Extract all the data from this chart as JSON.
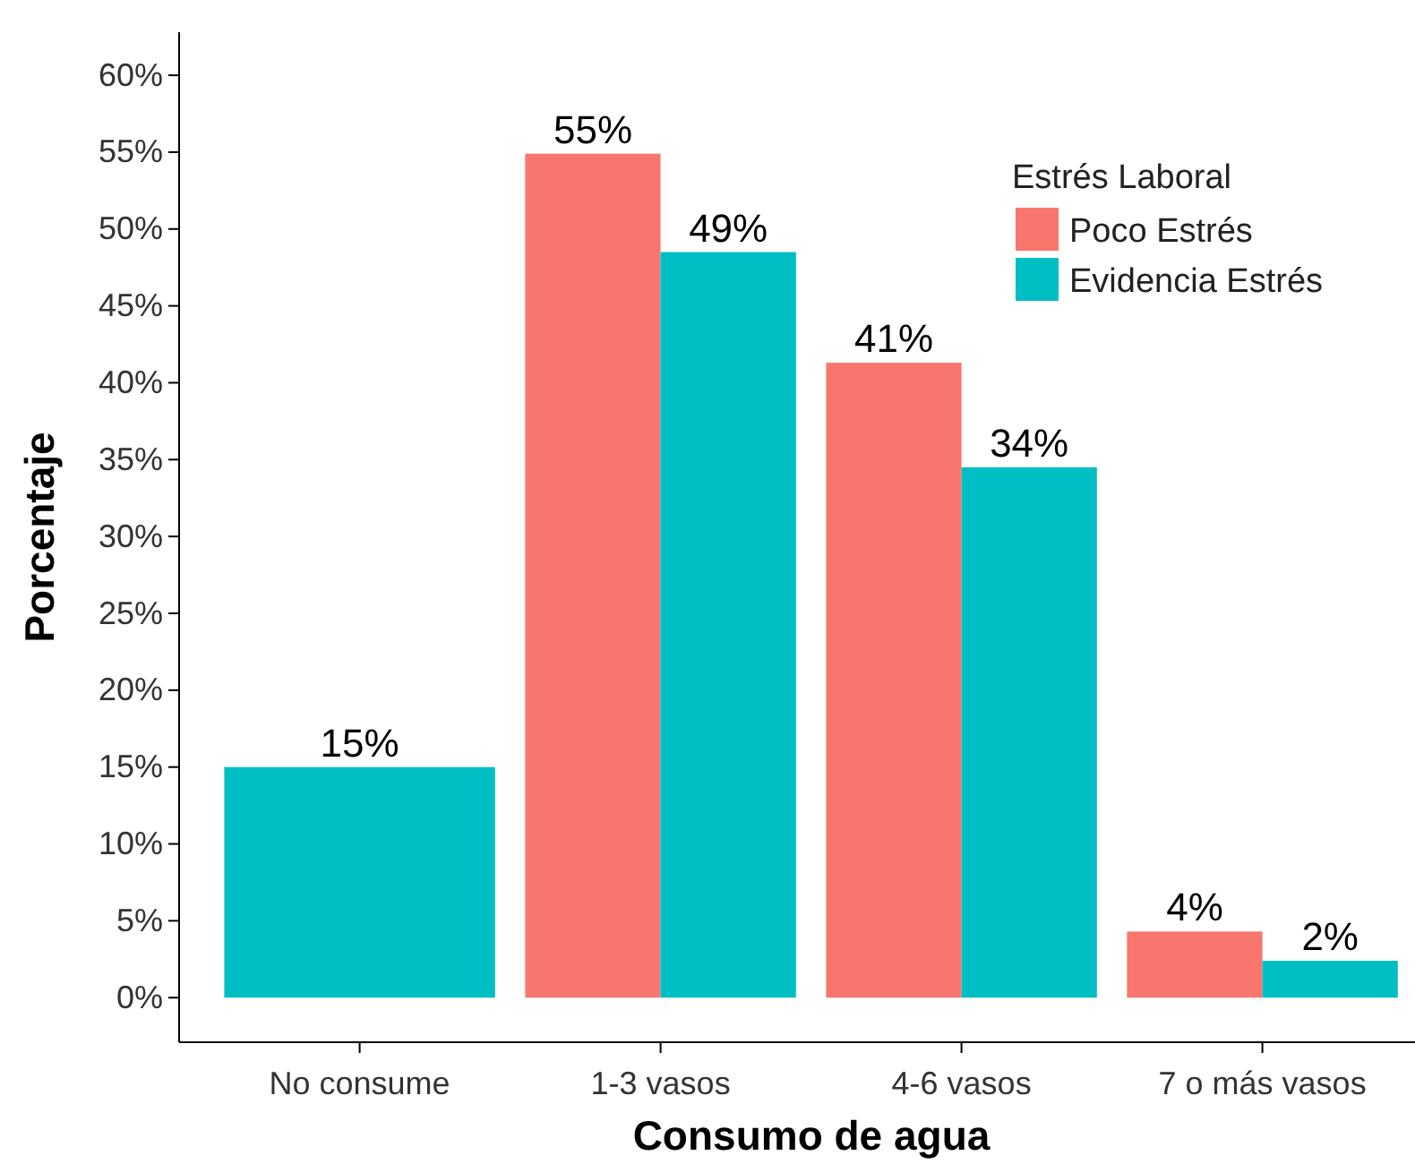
{
  "chart_data": {
    "type": "bar",
    "xlabel": "Consumo de agua",
    "ylabel": "Porcentaje",
    "legend_title": "Estrés Laboral",
    "legend": "top right",
    "grid": false,
    "categories": [
      "No consume",
      "1-3 vasos",
      "4-6 vasos",
      "7 o más vasos"
    ],
    "series": [
      {
        "name": "Poco Estrés",
        "color": "#f8766d",
        "values": [
          null,
          54.9,
          41.3,
          4.3
        ],
        "value_labels": [
          null,
          "55%",
          "41%",
          "4%"
        ]
      },
      {
        "name": "Evidencia Estrés",
        "color": "#00bfc4",
        "values": [
          15.0,
          48.5,
          34.5,
          2.4
        ],
        "value_labels": [
          "15%",
          "49%",
          "34%",
          "2%"
        ]
      }
    ],
    "ylim": [
      -2.9,
      62.8
    ],
    "yticks": [
      {
        "value": 0,
        "label": "0%"
      },
      {
        "value": 5,
        "label": "5%"
      },
      {
        "value": 10,
        "label": "10%"
      },
      {
        "value": 15,
        "label": "15%"
      },
      {
        "value": 20,
        "label": "20%"
      },
      {
        "value": 25,
        "label": "25%"
      },
      {
        "value": 30,
        "label": "30%"
      },
      {
        "value": 35,
        "label": "35%"
      },
      {
        "value": 40,
        "label": "40%"
      },
      {
        "value": 45,
        "label": "45%"
      },
      {
        "value": 50,
        "label": "50%"
      },
      {
        "value": 55,
        "label": "55%"
      },
      {
        "value": 60,
        "label": "60%"
      }
    ]
  }
}
